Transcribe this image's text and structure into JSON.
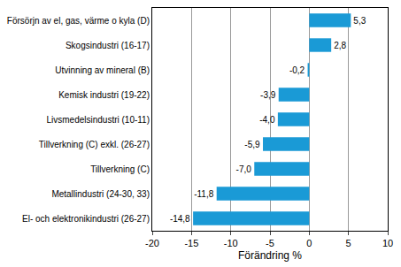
{
  "chart_data": {
    "type": "bar",
    "orientation": "horizontal",
    "x_label": "Förändring %",
    "categories": [
      "Försörjn av el, gas, värme o kyla (D)",
      "Skogsindustri (16-17)",
      "Utvinning av mineral (B)",
      "Kemisk industri (19-22)",
      "Livsmedelsindustri (10-11)",
      "Tillverkning (C) exkl. (26-27)",
      "Tillverkning (C)",
      "Metallindustri (24-30, 33)",
      "El- och elektronikindustri (26-27)"
    ],
    "values": [
      5.3,
      2.8,
      -0.2,
      -3.9,
      -4.0,
      -5.9,
      -7.0,
      -11.8,
      -14.8
    ],
    "value_labels": [
      "5,3",
      "2,8",
      "-0,2",
      "-3,9",
      "-4,0",
      "-5,9",
      "-7,0",
      "-11,8",
      "-14,8"
    ],
    "data_labels": true,
    "color": "#1a9ad6",
    "xlim": [
      -20,
      10
    ],
    "xticks": [
      -20,
      -15,
      -10,
      -5,
      0,
      5,
      10
    ],
    "grid": true
  }
}
